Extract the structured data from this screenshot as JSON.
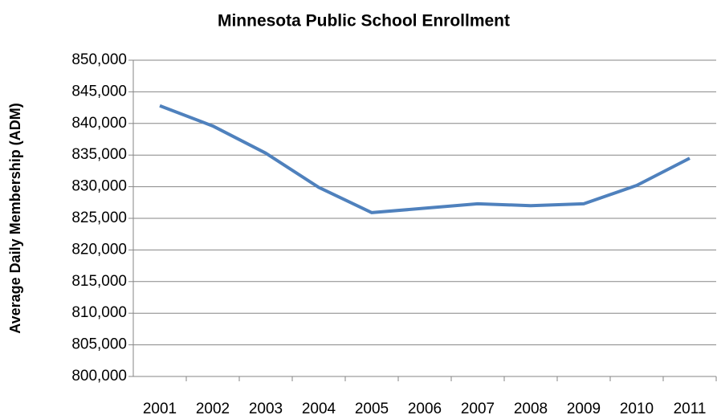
{
  "chart_data": {
    "type": "line",
    "title": "Minnesota Public School Enrollment",
    "y_label": "Average Daily Membership (ADM)",
    "categories": [
      "2001",
      "2002",
      "2003",
      "2004",
      "2005",
      "2006",
      "2007",
      "2008",
      "2009",
      "2010",
      "2011"
    ],
    "series": [
      {
        "name": "Enrollment",
        "color": "#4f81bd",
        "values": [
          842800,
          839600,
          835300,
          829900,
          825900,
          826600,
          827300,
          827000,
          827300,
          830200,
          834500
        ]
      }
    ],
    "ylim": [
      800000,
      850000
    ],
    "yticks": [
      {
        "value": 800000,
        "label": "800,000"
      },
      {
        "value": 805000,
        "label": "805,000"
      },
      {
        "value": 810000,
        "label": "810,000"
      },
      {
        "value": 815000,
        "label": "815,000"
      },
      {
        "value": 820000,
        "label": "820,000"
      },
      {
        "value": 825000,
        "label": "825,000"
      },
      {
        "value": 830000,
        "label": "830,000"
      },
      {
        "value": 835000,
        "label": "835,000"
      },
      {
        "value": 840000,
        "label": "840,000"
      },
      {
        "value": 845000,
        "label": "845,000"
      },
      {
        "value": 850000,
        "label": "850,000"
      }
    ],
    "grid": true
  }
}
